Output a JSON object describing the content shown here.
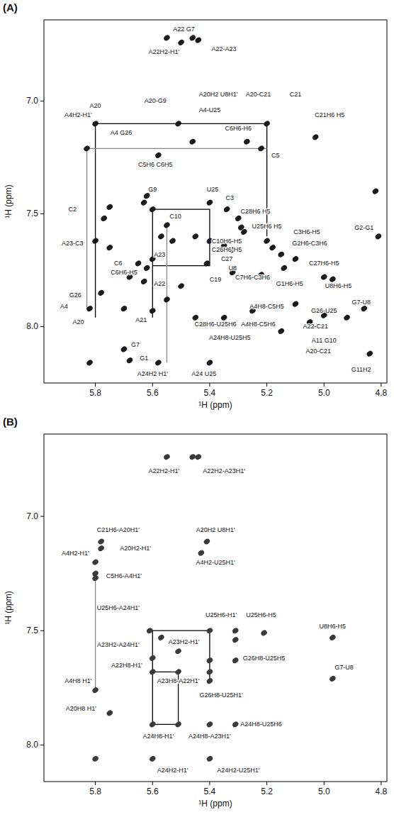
{
  "chart_data": [
    {
      "type": "scatter",
      "title": "(A)",
      "xlabel": "¹H (ppm)",
      "ylabel": "¹H (ppm)",
      "xlim": [
        5.98,
        4.78
      ],
      "ylim": [
        6.64,
        8.25
      ],
      "xticks": [
        5.8,
        5.6,
        5.4,
        5.2,
        {
          "value": 5,
          "label": "5.0"
        },
        4.8
      ],
      "yticks": [
        {
          "value": 7,
          "label": "7.0"
        },
        7.5,
        {
          "value": 8,
          "label": "8.0"
        }
      ],
      "grid": false,
      "color": "#1a1a1a",
      "marker": "ellipse",
      "x": [
        5.55,
        5.46,
        5.44,
        5.5,
        5.8,
        5.51,
        5.2,
        5.03,
        5.27,
        5.22,
        5.83,
        5.58,
        5.46,
        5.62,
        5.63,
        5.6,
        5.75,
        5.77,
        5.4,
        5.34,
        5.3,
        5.29,
        5.28,
        5.55,
        5.57,
        5.53,
        5.45,
        5.4,
        5.35,
        5.32,
        5.2,
        5.18,
        5.15,
        5.1,
        5.6,
        5.62,
        5.65,
        5.75,
        5.8,
        5.68,
        5.63,
        5.41,
        5.32,
        5.22,
        5.14,
        5.0,
        4.97,
        5.82,
        5.78,
        5.7,
        5.6,
        5.45,
        5.35,
        5.25,
        5.1,
        5.0,
        4.92,
        4.86,
        5.05,
        5.15,
        5.7,
        5.82,
        5.68,
        5.58,
        5.4,
        4.84,
        4.82,
        4.81,
        5.5,
        5.55
      ],
      "values": [
        6.72,
        6.72,
        6.73,
        6.74,
        7.1,
        7.1,
        7.1,
        7.16,
        7.18,
        7.21,
        7.21,
        7.24,
        7.18,
        7.42,
        7.45,
        7.48,
        7.47,
        7.52,
        7.45,
        7.48,
        7.52,
        7.56,
        7.58,
        7.55,
        7.6,
        7.62,
        7.6,
        7.62,
        7.64,
        7.66,
        7.62,
        7.65,
        7.68,
        7.7,
        7.7,
        7.74,
        7.72,
        7.65,
        7.62,
        7.78,
        7.8,
        7.72,
        7.76,
        7.77,
        7.74,
        7.78,
        7.79,
        7.92,
        7.85,
        7.92,
        7.93,
        7.96,
        7.96,
        7.93,
        7.9,
        7.95,
        7.96,
        7.92,
        7.98,
        8.02,
        8.1,
        8.16,
        8.15,
        8.16,
        8.16,
        8.12,
        7.4,
        7.6,
        7.82,
        7.88
      ],
      "walks": [
        {
          "color": "#000000",
          "x": [
            5.8,
            5.8,
            5.2,
            5.2
          ],
          "y": [
            7.96,
            7.1,
            7.1,
            7.6
          ]
        },
        {
          "color": "#888888",
          "x": [
            5.83,
            5.83,
            5.2
          ],
          "y": [
            7.92,
            7.21,
            7.21
          ]
        },
        {
          "color": "#000000",
          "x": [
            5.6,
            5.4,
            5.4,
            5.6,
            5.6
          ],
          "y": [
            7.73,
            7.73,
            7.48,
            7.48,
            7.96
          ]
        },
        {
          "color": "#888888",
          "x": [
            5.55,
            5.55
          ],
          "y": [
            8.16,
            7.55
          ]
        }
      ],
      "annotations": [
        {
          "text": "A22 G7",
          "x": 5.49,
          "y": 6.68
        },
        {
          "text": "A22H2-H1'",
          "x": 5.56,
          "y": 6.78
        },
        {
          "text": "A22-A23",
          "x": 5.35,
          "y": 6.77
        },
        {
          "text": "A20",
          "x": 5.8,
          "y": 7.02
        },
        {
          "text": "A4H2-H1'",
          "x": 5.86,
          "y": 7.06
        },
        {
          "text": "A20-G9",
          "x": 5.59,
          "y": 7.0
        },
        {
          "text": "A20H2 U8H1'",
          "x": 5.37,
          "y": 6.97
        },
        {
          "text": "A20-C21",
          "x": 5.23,
          "y": 6.97
        },
        {
          "text": "C21",
          "x": 5.1,
          "y": 6.97
        },
        {
          "text": "C21H6 H5",
          "x": 4.98,
          "y": 7.06
        },
        {
          "text": "A4 G26",
          "x": 5.71,
          "y": 7.14
        },
        {
          "text": "A4-U25",
          "x": 5.4,
          "y": 7.04
        },
        {
          "text": "C6H6-H6",
          "x": 5.3,
          "y": 7.12
        },
        {
          "text": "C5",
          "x": 5.17,
          "y": 7.24
        },
        {
          "text": "C5H6 C6H5",
          "x": 5.59,
          "y": 7.28
        },
        {
          "text": "G9",
          "x": 5.6,
          "y": 7.39
        },
        {
          "text": "U25",
          "x": 5.39,
          "y": 7.39
        },
        {
          "text": "C3",
          "x": 5.33,
          "y": 7.43
        },
        {
          "text": "C2",
          "x": 5.88,
          "y": 7.48
        },
        {
          "text": "C10",
          "x": 5.52,
          "y": 7.51
        },
        {
          "text": "C28H6 H5",
          "x": 5.24,
          "y": 7.49
        },
        {
          "text": "U25H6 H5",
          "x": 5.2,
          "y": 7.555
        },
        {
          "text": "C3H6-H5",
          "x": 5.06,
          "y": 7.58
        },
        {
          "text": "G2H6-C3H6",
          "x": 5.05,
          "y": 7.63
        },
        {
          "text": "G2-G1",
          "x": 4.86,
          "y": 7.56
        },
        {
          "text": "A23-C3",
          "x": 5.88,
          "y": 7.63
        },
        {
          "text": "C10H6-H5",
          "x": 5.34,
          "y": 7.62
        },
        {
          "text": "C26H6-H5",
          "x": 5.34,
          "y": 7.66
        },
        {
          "text": "C27",
          "x": 5.34,
          "y": 7.7
        },
        {
          "text": "U8",
          "x": 5.32,
          "y": 7.74
        },
        {
          "text": "C19",
          "x": 5.38,
          "y": 7.79
        },
        {
          "text": "C7H6-C3H6",
          "x": 5.25,
          "y": 7.78
        },
        {
          "text": "C27H6-H5",
          "x": 5.0,
          "y": 7.72
        },
        {
          "text": "G1H6-H5",
          "x": 5.12,
          "y": 7.81
        },
        {
          "text": "U8H6-H5",
          "x": 4.95,
          "y": 7.82
        },
        {
          "text": "A23",
          "x": 5.575,
          "y": 7.68
        },
        {
          "text": "C6",
          "x": 5.72,
          "y": 7.72
        },
        {
          "text": "C6H6-H5",
          "x": 5.7,
          "y": 7.76
        },
        {
          "text": "A22",
          "x": 5.575,
          "y": 7.81
        },
        {
          "text": "G26",
          "x": 5.87,
          "y": 7.86
        },
        {
          "text": "A4",
          "x": 5.91,
          "y": 7.91
        },
        {
          "text": "A20",
          "x": 5.86,
          "y": 7.98
        },
        {
          "text": "A21",
          "x": 5.64,
          "y": 7.97
        },
        {
          "text": "C28H6-U25H6",
          "x": 5.38,
          "y": 7.99
        },
        {
          "text": "A4H8-C5H5",
          "x": 5.2,
          "y": 7.91
        },
        {
          "text": "A4H8-C5H6",
          "x": 5.23,
          "y": 7.99
        },
        {
          "text": "G26-U25",
          "x": 5.0,
          "y": 7.93
        },
        {
          "text": "G7-U8",
          "x": 4.87,
          "y": 7.89
        },
        {
          "text": "A22-C21",
          "x": 5.03,
          "y": 8.0
        },
        {
          "text": "A11 G10",
          "x": 5.0,
          "y": 8.06
        },
        {
          "text": "A24H8-U25H5",
          "x": 5.33,
          "y": 8.05
        },
        {
          "text": "A20-C21",
          "x": 5.02,
          "y": 8.11
        },
        {
          "text": "G7",
          "x": 5.66,
          "y": 8.08
        },
        {
          "text": "G1",
          "x": 5.63,
          "y": 8.14
        },
        {
          "text": "A24H2 H1'",
          "x": 5.6,
          "y": 8.21
        },
        {
          "text": "A24 U25",
          "x": 5.42,
          "y": 8.21
        },
        {
          "text": "G11H2",
          "x": 4.87,
          "y": 8.19
        }
      ]
    },
    {
      "type": "scatter",
      "title": "(B)",
      "xlabel": "¹H (ppm)",
      "ylabel": "¹H (ppm)",
      "xlim": [
        5.98,
        4.78
      ],
      "ylim": [
        6.64,
        8.16
      ],
      "xticks": [
        5.8,
        5.6,
        5.4,
        5.2,
        {
          "value": 5,
          "label": "5.0"
        },
        4.8
      ],
      "yticks": [
        {
          "value": 7,
          "label": "7.0"
        },
        7.5,
        {
          "value": 8,
          "label": "8.0"
        }
      ],
      "grid": false,
      "color": "#3a3a3a",
      "marker": "ellipse",
      "x": [
        5.55,
        5.46,
        5.44,
        5.78,
        5.78,
        5.41,
        5.8,
        5.8,
        5.8,
        5.43,
        5.57,
        5.4,
        5.31,
        5.31,
        5.21,
        5.6,
        5.51,
        5.6,
        5.51,
        5.4,
        5.4,
        5.4,
        5.31,
        5.8,
        5.75,
        5.6,
        5.51,
        5.4,
        5.31,
        5.6,
        5.4,
        5.8,
        4.97,
        4.97,
        5.61
      ],
      "values": [
        6.74,
        6.74,
        6.74,
        7.11,
        7.14,
        7.11,
        7.2,
        7.25,
        7.27,
        7.16,
        7.53,
        7.5,
        7.5,
        7.54,
        7.51,
        7.62,
        7.59,
        7.68,
        7.68,
        7.63,
        7.68,
        7.72,
        7.63,
        7.76,
        7.86,
        7.91,
        7.91,
        7.91,
        7.91,
        8.06,
        8.06,
        8.06,
        7.53,
        7.71,
        7.5
      ],
      "walks": [
        {
          "color": "#888888",
          "x": [
            5.8,
            5.8
          ],
          "y": [
            7.25,
            7.76
          ]
        },
        {
          "color": "#000000",
          "x": [
            5.4,
            5.4,
            5.6,
            5.6,
            5.51,
            5.51,
            5.6
          ],
          "y": [
            7.72,
            7.5,
            7.5,
            7.91,
            7.91,
            7.68,
            7.68
          ]
        }
      ],
      "annotations": [
        {
          "text": "A22H2-H1'",
          "x": 5.56,
          "y": 6.8
        },
        {
          "text": "A22H2-A23H1'",
          "x": 5.35,
          "y": 6.8
        },
        {
          "text": "C21H6-A20H1'",
          "x": 5.72,
          "y": 7.06
        },
        {
          "text": "A20H2-H1'",
          "x": 5.66,
          "y": 7.14
        },
        {
          "text": "A20H2 U8H1'",
          "x": 5.38,
          "y": 7.06
        },
        {
          "text": "A4H2-H1'",
          "x": 5.87,
          "y": 7.16
        },
        {
          "text": "A4H2-U25H1'",
          "x": 5.38,
          "y": 7.2
        },
        {
          "text": "C5H6-A4H1'",
          "x": 5.7,
          "y": 7.26
        },
        {
          "text": "U25H6-A24H1'",
          "x": 5.72,
          "y": 7.4
        },
        {
          "text": "U25H6-H1'",
          "x": 5.36,
          "y": 7.43
        },
        {
          "text": "U25H6-H5",
          "x": 5.22,
          "y": 7.43
        },
        {
          "text": "A23H2-A24H1'",
          "x": 5.72,
          "y": 7.56
        },
        {
          "text": "A23H2-H1'",
          "x": 5.49,
          "y": 7.55
        },
        {
          "text": "A22H8-H1'",
          "x": 5.69,
          "y": 7.65
        },
        {
          "text": "G26H8-U25H5",
          "x": 5.21,
          "y": 7.62
        },
        {
          "text": "A4H8 H1'",
          "x": 5.86,
          "y": 7.72
        },
        {
          "text": "A23H8-A22H1'",
          "x": 5.51,
          "y": 7.72
        },
        {
          "text": "G26H8-U25H1'",
          "x": 5.36,
          "y": 7.78
        },
        {
          "text": "A20H8 H1'",
          "x": 5.85,
          "y": 7.84
        },
        {
          "text": "A24H8-H1'",
          "x": 5.58,
          "y": 7.96
        },
        {
          "text": "A24H8-A23H1'",
          "x": 5.4,
          "y": 7.96
        },
        {
          "text": "A24H8-U25H6",
          "x": 5.22,
          "y": 7.91
        },
        {
          "text": "A24H2-H1'",
          "x": 5.53,
          "y": 8.11
        },
        {
          "text": "A24H2-U25H1'",
          "x": 5.3,
          "y": 8.11
        },
        {
          "text": "U8H6-H5",
          "x": 4.97,
          "y": 7.48
        },
        {
          "text": "G7-U8",
          "x": 4.93,
          "y": 7.66
        }
      ]
    }
  ]
}
